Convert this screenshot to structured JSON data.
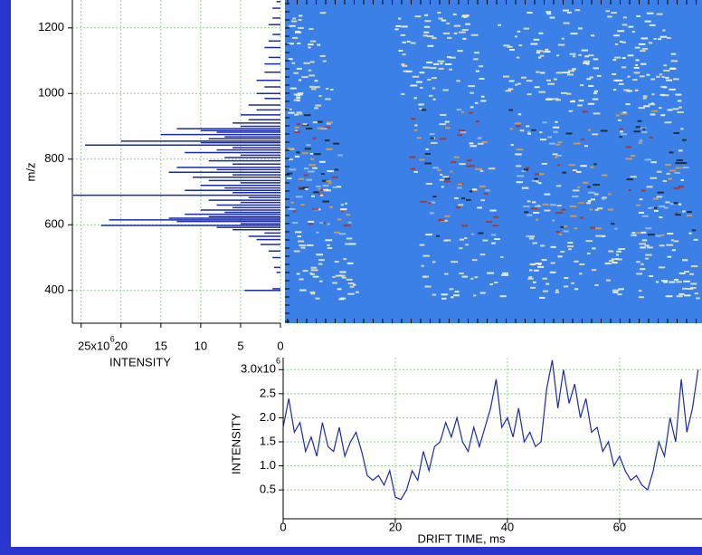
{
  "chart_data": [
    {
      "type": "stick",
      "ylabel": "m/z",
      "xlabel": "INTENSITY",
      "xtick_exponent": "6",
      "y": [
        400,
        405,
        455,
        470,
        500,
        520,
        540,
        555,
        565,
        575,
        585,
        592,
        598,
        603,
        610,
        615,
        620,
        625,
        632,
        638,
        645,
        652,
        660,
        668,
        675,
        683,
        690,
        698,
        705,
        712,
        720,
        728,
        735,
        745,
        752,
        760,
        768,
        775,
        785,
        795,
        805,
        812,
        820,
        828,
        835,
        843,
        850,
        855,
        862,
        868,
        875,
        882,
        887,
        893,
        900,
        910,
        920,
        935,
        950,
        965,
        985,
        1000,
        1020,
        1040,
        1065,
        1090,
        1110,
        1140,
        1160,
        1180,
        1210,
        1230,
        1260,
        1280
      ],
      "values": [
        4.5,
        1,
        0.5,
        0.8,
        1,
        1.5,
        2.5,
        3,
        4,
        2,
        6,
        8,
        22.5,
        5,
        13,
        21.5,
        14,
        9,
        12,
        7,
        10,
        6,
        8,
        5,
        9,
        4,
        26,
        6,
        12,
        7,
        10,
        5,
        9,
        11,
        6,
        14,
        8,
        13,
        6,
        9,
        7,
        5,
        12,
        8,
        6,
        24.5,
        10,
        20,
        9,
        7,
        15,
        8,
        10,
        13,
        5,
        6,
        4,
        5,
        3,
        4,
        2,
        3,
        2,
        3,
        2,
        2,
        1.5,
        2,
        1.5,
        1,
        1.5,
        1,
        1,
        0.5
      ],
      "color": "#1a2aa8",
      "xlim": [
        26.1,
        0
      ],
      "xticks": [
        {
          "value": 25,
          "label": "25x10"
        },
        20,
        15,
        10,
        5,
        0
      ],
      "ylim": [
        300,
        1285
      ],
      "yticks": [
        400,
        600,
        800,
        1000,
        1200
      ],
      "grid": true
    },
    {
      "type": "line",
      "xlabel": "DRIFT TIME, ms",
      "ylabel": "INTENSITY",
      "ytick_exponent": "6",
      "x": [
        0,
        1,
        2,
        3,
        4,
        5,
        6,
        7,
        8,
        9,
        10,
        11,
        12,
        13,
        14,
        15,
        16,
        17,
        18,
        19,
        20,
        21,
        22,
        23,
        24,
        25,
        26,
        27,
        28,
        29,
        30,
        31,
        32,
        33,
        34,
        35,
        36,
        37,
        38,
        39,
        40,
        41,
        42,
        43,
        44,
        45,
        46,
        47,
        48,
        49,
        50,
        51,
        52,
        53,
        54,
        55,
        56,
        57,
        58,
        59,
        60,
        61,
        62,
        63,
        64,
        65,
        66,
        67,
        68,
        69,
        70,
        71,
        72,
        73,
        74
      ],
      "values": [
        1.8,
        2.4,
        1.7,
        1.9,
        1.3,
        1.6,
        1.2,
        1.9,
        1.4,
        1.3,
        1.8,
        1.2,
        1.5,
        1.7,
        1.3,
        0.8,
        0.7,
        0.8,
        0.6,
        0.9,
        0.35,
        0.3,
        0.5,
        0.9,
        0.7,
        1.3,
        0.9,
        1.4,
        1.5,
        1.9,
        1.6,
        2.0,
        1.5,
        1.3,
        1.8,
        1.4,
        1.8,
        2.2,
        2.8,
        1.8,
        2.0,
        1.6,
        2.2,
        1.5,
        1.7,
        1.4,
        1.5,
        2.6,
        3.2,
        2.2,
        3.0,
        2.3,
        2.7,
        2.0,
        2.4,
        1.7,
        1.8,
        1.3,
        1.5,
        1.0,
        1.2,
        0.9,
        0.7,
        0.8,
        0.6,
        0.5,
        0.9,
        1.5,
        1.2,
        2.0,
        1.5,
        2.8,
        1.7,
        2.2,
        3.0
      ],
      "color": "#1a2aa8",
      "xlim": [
        0,
        74.7
      ],
      "xticks": [
        0,
        20,
        40,
        60
      ],
      "ylim": [
        -0.1,
        3.25
      ],
      "yticks": [
        0.5,
        {
          "value": 1,
          "label": "1.0"
        },
        1.5,
        {
          "value": 2,
          "label": "2.0"
        },
        2.5,
        {
          "value": 3,
          "label": "3.0x10"
        }
      ],
      "grid": true
    }
  ]
}
